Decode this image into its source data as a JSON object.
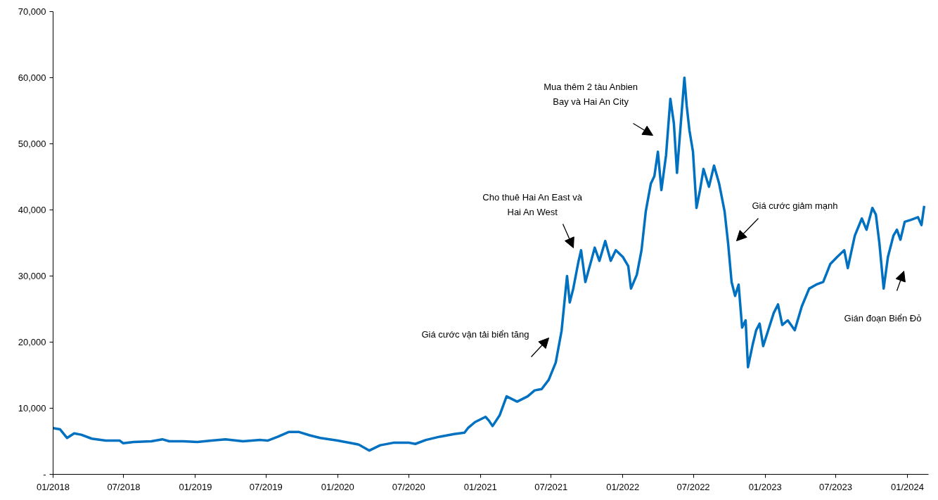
{
  "chart_data": {
    "type": "line",
    "x": [
      "2018-01-01",
      "2018-01-19",
      "2018-02-06",
      "2018-02-24",
      "2018-03-14",
      "2018-04-10",
      "2018-05-16",
      "2018-06-21",
      "2018-06-30",
      "2018-07-27",
      "2018-09-10",
      "2018-10-08",
      "2018-10-26",
      "2018-12-01",
      "2019-01-06",
      "2019-02-11",
      "2019-03-19",
      "2019-05-03",
      "2019-06-17",
      "2019-07-05",
      "2019-08-01",
      "2019-08-28",
      "2019-09-24",
      "2019-10-21",
      "2019-11-17",
      "2020-01-01",
      "2020-02-06",
      "2020-02-24",
      "2020-03-22",
      "2020-04-19",
      "2020-05-25",
      "2020-06-30",
      "2020-07-18",
      "2020-08-14",
      "2020-09-19",
      "2020-10-25",
      "2020-11-21",
      "2020-11-30",
      "2020-12-18",
      "2021-01-14",
      "2021-01-23",
      "2021-02-01",
      "2021-02-19",
      "2021-03-09",
      "2021-04-05",
      "2021-05-02",
      "2021-05-20",
      "2021-06-07",
      "2021-06-25",
      "2021-07-13",
      "2021-07-28",
      "2021-08-11",
      "2021-08-18",
      "2021-08-27",
      "2021-09-09",
      "2021-09-16",
      "2021-09-27",
      "2021-10-12",
      "2021-10-21",
      "2021-11-02",
      "2021-11-17",
      "2021-12-01",
      "2021-12-14",
      "2022-01-01",
      "2022-01-15",
      "2022-01-22",
      "2022-02-06",
      "2022-02-18",
      "2022-03-01",
      "2022-03-14",
      "2022-03-23",
      "2022-04-01",
      "2022-04-10",
      "2022-04-22",
      "2022-05-03",
      "2022-05-12",
      "2022-05-20",
      "2022-05-29",
      "2022-06-08",
      "2022-06-14",
      "2022-06-21",
      "2022-06-30",
      "2022-07-09",
      "2022-07-18",
      "2022-07-27",
      "2022-08-10",
      "2022-08-23",
      "2022-09-05",
      "2022-09-19",
      "2022-09-28",
      "2022-10-07",
      "2022-10-16",
      "2022-10-25",
      "2022-11-03",
      "2022-11-12",
      "2022-11-18",
      "2022-11-30",
      "2022-12-09",
      "2022-12-18",
      "2022-12-27",
      "2023-01-09",
      "2023-01-23",
      "2023-02-03",
      "2023-02-14",
      "2023-02-28",
      "2023-03-18",
      "2023-04-05",
      "2023-04-24",
      "2023-05-12",
      "2023-05-30",
      "2023-06-17",
      "2023-07-05",
      "2023-07-23",
      "2023-08-01",
      "2023-08-19",
      "2023-09-06",
      "2023-09-18",
      "2023-10-03",
      "2023-10-12",
      "2023-10-21",
      "2023-11-01",
      "2023-11-12",
      "2023-11-26",
      "2023-12-05",
      "2023-12-14",
      "2023-12-25",
      "2024-01-10",
      "2024-01-28",
      "2024-02-06",
      "2024-02-13"
    ],
    "series": [
      {
        "color": "#0070c0",
        "values": [
          7000,
          6800,
          5500,
          6200,
          6000,
          5400,
          5100,
          5100,
          4700,
          4900,
          5000,
          5300,
          5000,
          5000,
          4900,
          5100,
          5300,
          5000,
          5200,
          5100,
          5700,
          6400,
          6400,
          5900,
          5500,
          5100,
          4700,
          4500,
          3600,
          4400,
          4800,
          4800,
          4600,
          5200,
          5700,
          6100,
          6300,
          7000,
          7900,
          8700,
          8100,
          7300,
          8900,
          11800,
          11000,
          11800,
          12700,
          12900,
          14300,
          16900,
          21700,
          30000,
          26000,
          28100,
          32100,
          33900,
          29100,
          32300,
          34300,
          32300,
          35300,
          32300,
          33900,
          32900,
          31500,
          28100,
          30200,
          33900,
          39800,
          44000,
          45100,
          48800,
          43000,
          48300,
          56800,
          53100,
          45600,
          52500,
          60000,
          55700,
          52000,
          48800,
          40300,
          43000,
          46200,
          43500,
          46700,
          44000,
          39800,
          35000,
          29100,
          27000,
          28700,
          22200,
          23300,
          16200,
          19600,
          21800,
          22800,
          19400,
          21800,
          24400,
          25700,
          22600,
          23300,
          21800,
          25400,
          28100,
          28700,
          29100,
          31800,
          32900,
          33900,
          31200,
          36100,
          38700,
          37000,
          40300,
          39300,
          35000,
          28100,
          32900,
          36100,
          37000,
          35500,
          38200,
          38500,
          38900,
          37700,
          40600
        ]
      }
    ],
    "xlim": [
      "2018-01-01",
      "2024-02-24"
    ],
    "xticks": [
      {
        "value": "2018-01-01",
        "label": "01/2018"
      },
      {
        "value": "2018-07-01",
        "label": "07/2018"
      },
      {
        "value": "2019-01-01",
        "label": "01/2019"
      },
      {
        "value": "2019-07-01",
        "label": "07/2019"
      },
      {
        "value": "2020-01-01",
        "label": "01/2020"
      },
      {
        "value": "2020-07-01",
        "label": "07/2020"
      },
      {
        "value": "2021-01-01",
        "label": "01/2021"
      },
      {
        "value": "2021-07-01",
        "label": "07/2021"
      },
      {
        "value": "2022-01-01",
        "label": "01/2022"
      },
      {
        "value": "2022-07-01",
        "label": "07/2022"
      },
      {
        "value": "2023-01-01",
        "label": "01/2023"
      },
      {
        "value": "2023-07-01",
        "label": "07/2023"
      },
      {
        "value": "2024-01-01",
        "label": "01/2024"
      }
    ],
    "ylim": [
      0,
      70000
    ],
    "yticks": [
      {
        "value": 0,
        "label": "-"
      },
      {
        "value": 10000,
        "label": "10,000"
      },
      {
        "value": 20000,
        "label": "20,000"
      },
      {
        "value": 30000,
        "label": "30,000"
      },
      {
        "value": 40000,
        "label": "40,000"
      },
      {
        "value": 50000,
        "label": "50,000"
      },
      {
        "value": 60000,
        "label": "60,000"
      },
      {
        "value": 70000,
        "label": "70,000"
      }
    ],
    "annotations": [
      "Giá cước vận tải biển tăng",
      "Cho thuê Hai An East và\nHai An West",
      "Mua thêm 2 tàu Anbien\nBay và Hai An City",
      "Giá cước giảm mạnh",
      "Gián đoạn Biển Đỏ"
    ]
  }
}
